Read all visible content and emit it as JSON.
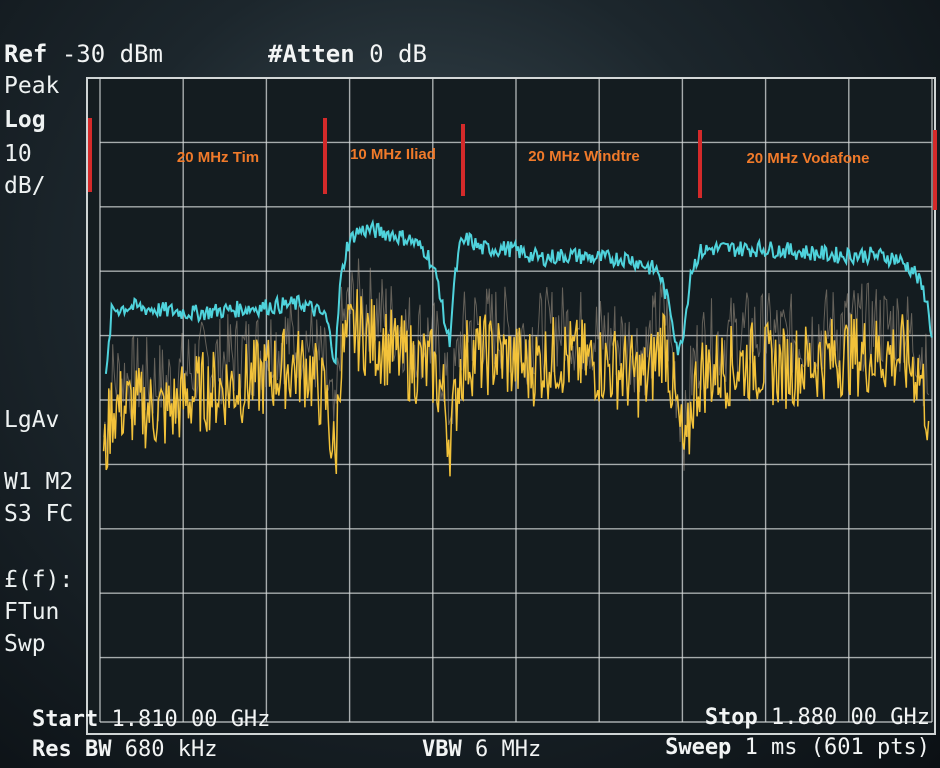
{
  "header": {
    "ref_key": "Ref",
    "ref_value": "-30 dBm",
    "atten_key": "#Atten",
    "atten_value": "0 dB"
  },
  "side_panel": {
    "detector": "Peak",
    "scale_type": "Log",
    "scale_value": "10",
    "scale_unit": "dB/",
    "averaging": "LgAv",
    "trace_line1": "W1  M2",
    "trace_line2": "S3  FC",
    "func_line1": "£(f):",
    "func_line2": "FTun",
    "func_line3": "Swp"
  },
  "footer": {
    "start_key": "Start",
    "start_value": "1.810 00 GHz",
    "stop_key": "Stop",
    "stop_value": "1.880 00 GHz",
    "rbw_key": "Res BW",
    "rbw_value": "680 kHz",
    "vbw_key": "VBW",
    "vbw_value": "6 MHz",
    "sweep_key": "Sweep",
    "sweep_value": "1 ms (601 pts)"
  },
  "annotations": {
    "bands": [
      {
        "label": "20 MHz Tim"
      },
      {
        "label": "10 MHz Iliad"
      },
      {
        "label": "20 MHz Windtre"
      },
      {
        "label": "20 MHz Vodafone"
      }
    ],
    "marker_color": "#d42a2a",
    "label_color": "#f07a2a"
  },
  "colors": {
    "trace_max_hold": "#4fd3dc",
    "trace_live": "#f2c23a",
    "trace_background": "#a89a8a",
    "graticule": "#d8dcdc"
  },
  "chart_data": {
    "type": "line",
    "x_unit": "GHz",
    "y_unit": "dBm",
    "xlim": [
      1.81,
      1.88
    ],
    "ylim": [
      -130,
      -30
    ],
    "grid": true,
    "series": [
      {
        "key": "maxhold",
        "x": [
          1.8105,
          1.811,
          1.8125,
          1.815,
          1.818,
          1.821,
          1.824,
          1.827,
          1.829,
          1.8298,
          1.8302,
          1.8308,
          1.8315,
          1.8325,
          1.834,
          1.836,
          1.8375,
          1.8385,
          1.839,
          1.8394,
          1.8398,
          1.8403,
          1.841,
          1.842,
          1.8445,
          1.847,
          1.8495,
          1.852,
          1.8545,
          1.857,
          1.858,
          1.8587,
          1.8592,
          1.8597,
          1.8605,
          1.8615,
          1.863,
          1.866,
          1.869,
          1.872,
          1.875,
          1.877,
          1.8785,
          1.8795,
          1.88
        ],
        "y": [
          -77,
          -66,
          -65.5,
          -66,
          -66.5,
          -66,
          -65.5,
          -65,
          -67,
          -74,
          -62,
          -56,
          -54,
          -53.5,
          -54,
          -55,
          -57,
          -62,
          -68,
          -71,
          -62,
          -56,
          -55,
          -56.5,
          -56.5,
          -58,
          -57.5,
          -58,
          -58,
          -60,
          -66,
          -73,
          -68,
          -60,
          -57,
          -56.5,
          -56.5,
          -56.5,
          -57,
          -57.5,
          -57.5,
          -58,
          -60,
          -64,
          -70
        ]
      },
      {
        "key": "live",
        "x": [
          1.8103,
          1.811,
          1.813,
          1.8155,
          1.818,
          1.8205,
          1.823,
          1.8255,
          1.8275,
          1.829,
          1.8298,
          1.8302,
          1.8308,
          1.8315,
          1.8335,
          1.836,
          1.838,
          1.839,
          1.8394,
          1.8398,
          1.8403,
          1.841,
          1.8435,
          1.846,
          1.8485,
          1.851,
          1.8535,
          1.856,
          1.8575,
          1.8587,
          1.8593,
          1.8598,
          1.8605,
          1.8625,
          1.865,
          1.8675,
          1.87,
          1.8725,
          1.875,
          1.8775,
          1.879,
          1.8798
        ],
        "y": [
          -90,
          -81,
          -81,
          -82,
          -79,
          -78,
          -77,
          -75,
          -75,
          -80,
          -90,
          -74,
          -71,
          -69,
          -71,
          -74,
          -75,
          -80,
          -86,
          -82,
          -75,
          -73,
          -73,
          -75,
          -73,
          -74,
          -75,
          -77,
          -70,
          -84,
          -90,
          -80,
          -76,
          -75,
          -74,
          -75,
          -74,
          -73,
          -73,
          -73,
          -76,
          -83
        ]
      }
    ]
  }
}
